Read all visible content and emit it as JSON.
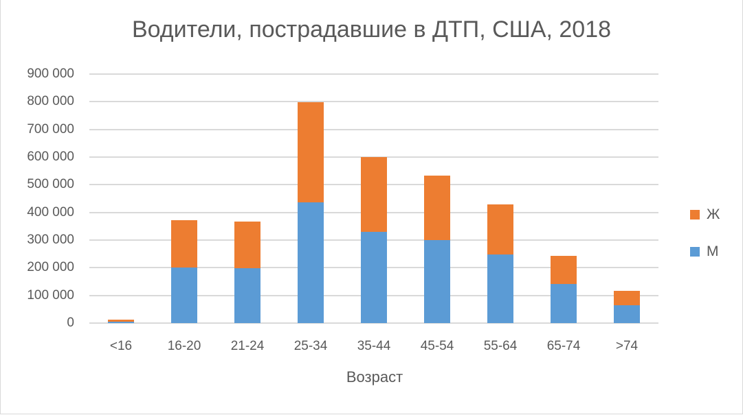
{
  "chart_data": {
    "type": "bar",
    "stacked": true,
    "title": "Водители, пострадавшие в ДТП, США, 2018",
    "xlabel": "Возраст",
    "ylabel": "",
    "ylim": [
      0,
      900000
    ],
    "yticks": [
      "0",
      "100 000",
      "200 000",
      "300 000",
      "400 000",
      "500 000",
      "600 000",
      "700 000",
      "800 000",
      "900 000"
    ],
    "grid": true,
    "legend_position": "right",
    "categories": [
      "<16",
      "16-20",
      "21-24",
      "25-34",
      "35-44",
      "45-54",
      "55-64",
      "65-74",
      ">74"
    ],
    "series": [
      {
        "name": "М",
        "color": "#5b9bd5",
        "values": [
          5000,
          201000,
          198000,
          436000,
          330000,
          300000,
          248000,
          141000,
          65000
        ]
      },
      {
        "name": "Ж",
        "color": "#ed7d31",
        "values": [
          7000,
          171000,
          169000,
          362000,
          270000,
          233000,
          181000,
          102000,
          52000
        ]
      }
    ]
  },
  "legend": [
    {
      "label": "Ж",
      "color": "#ed7d31"
    },
    {
      "label": "М",
      "color": "#5b9bd5"
    }
  ]
}
